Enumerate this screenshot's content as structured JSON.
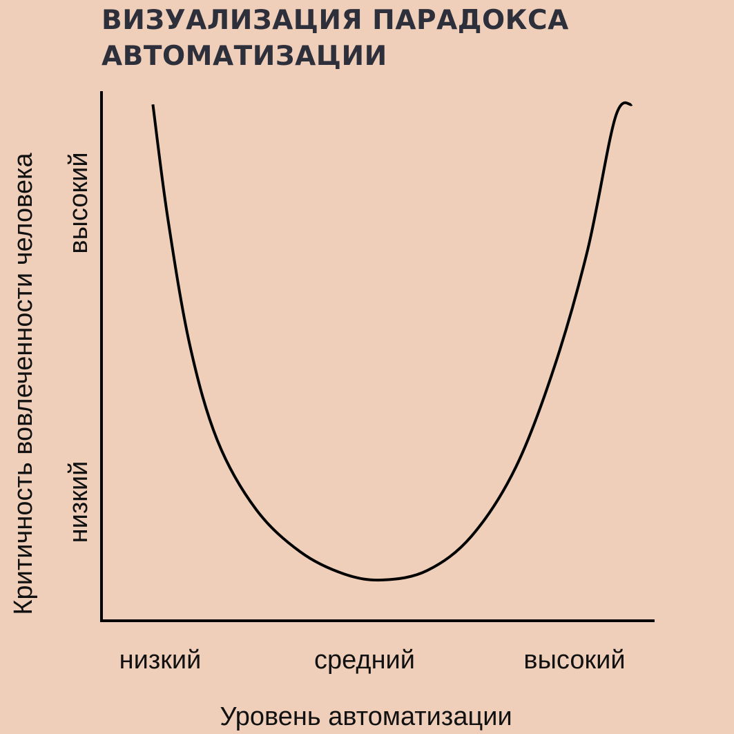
{
  "chart_data": {
    "type": "line",
    "title_lines": [
      "ВИЗУАЛИЗАЦИЯ ПАРАДОКСА",
      "АВТОМАТИЗАЦИИ"
    ],
    "xlabel": "Уровень автоматизации",
    "ylabel": "Критичность вовлеченности человека",
    "x_tick_labels": [
      "низкий",
      "средний",
      "высокий"
    ],
    "y_tick_labels": [
      "низкий",
      "высокий"
    ],
    "xlim": [
      0,
      10
    ],
    "ylim": [
      0,
      10
    ],
    "grid": false,
    "legend": "none",
    "series": [
      {
        "values": [
          {
            "x": 0.93,
            "y": 9.75
          },
          {
            "x": 1.2,
            "y": 7.6
          },
          {
            "x": 1.6,
            "y": 5.2
          },
          {
            "x": 2.1,
            "y": 3.4
          },
          {
            "x": 2.8,
            "y": 2.1
          },
          {
            "x": 3.6,
            "y": 1.3
          },
          {
            "x": 4.4,
            "y": 0.88
          },
          {
            "x": 5.1,
            "y": 0.77
          },
          {
            "x": 5.9,
            "y": 0.95
          },
          {
            "x": 6.7,
            "y": 1.6
          },
          {
            "x": 7.5,
            "y": 2.9
          },
          {
            "x": 8.2,
            "y": 4.8
          },
          {
            "x": 8.8,
            "y": 7.0
          },
          {
            "x": 9.3,
            "y": 9.5
          },
          {
            "x": 9.6,
            "y": 9.75
          }
        ]
      }
    ],
    "style": {
      "background": "#f0cfba",
      "title_color": "#2d2f3b",
      "line_color": "#000000",
      "text_color": "#111111"
    }
  }
}
